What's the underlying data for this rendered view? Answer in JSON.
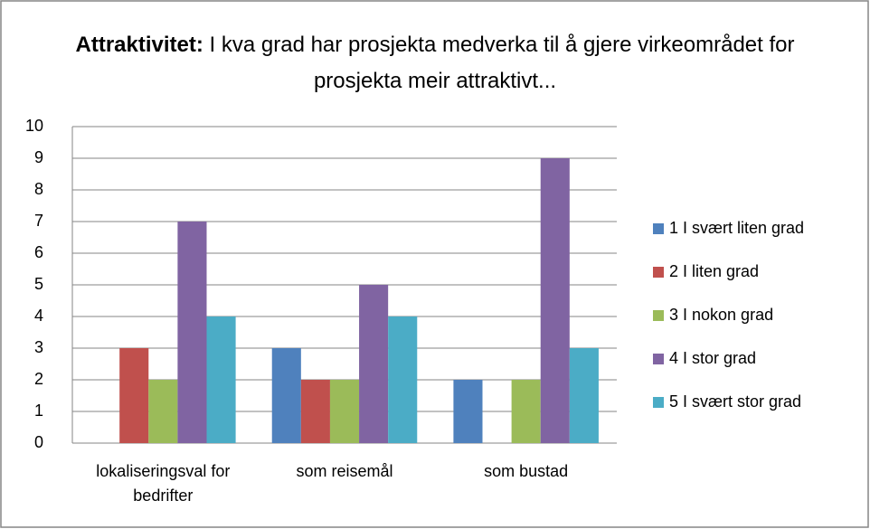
{
  "chart_data": {
    "type": "bar",
    "title_bold": "Attraktivitet:",
    "title": "I kva grad har prosjekta medverka til å gjere virkeområdet for prosjekta meir attraktivt...",
    "categories": [
      "lokaliseringsval for bedrifter",
      "som reisemål",
      "som bustad"
    ],
    "series": [
      {
        "name": "1 I svært liten grad",
        "color": "#4f81bd",
        "values": [
          0,
          3,
          2
        ]
      },
      {
        "name": "2 I liten grad",
        "color": "#c0504d",
        "values": [
          3,
          2,
          0
        ]
      },
      {
        "name": "3 I nokon grad",
        "color": "#9bbb59",
        "values": [
          2,
          2,
          2
        ]
      },
      {
        "name": "4 I stor grad",
        "color": "#8064a2",
        "values": [
          7,
          5,
          9
        ]
      },
      {
        "name": "5 I svært stor grad",
        "color": "#4bacc6",
        "values": [
          4,
          4,
          3
        ]
      }
    ],
    "ylim": [
      0,
      10
    ],
    "yticks": [
      0,
      1,
      2,
      3,
      4,
      5,
      6,
      7,
      8,
      9,
      10
    ],
    "grid": true,
    "legend": "right"
  }
}
